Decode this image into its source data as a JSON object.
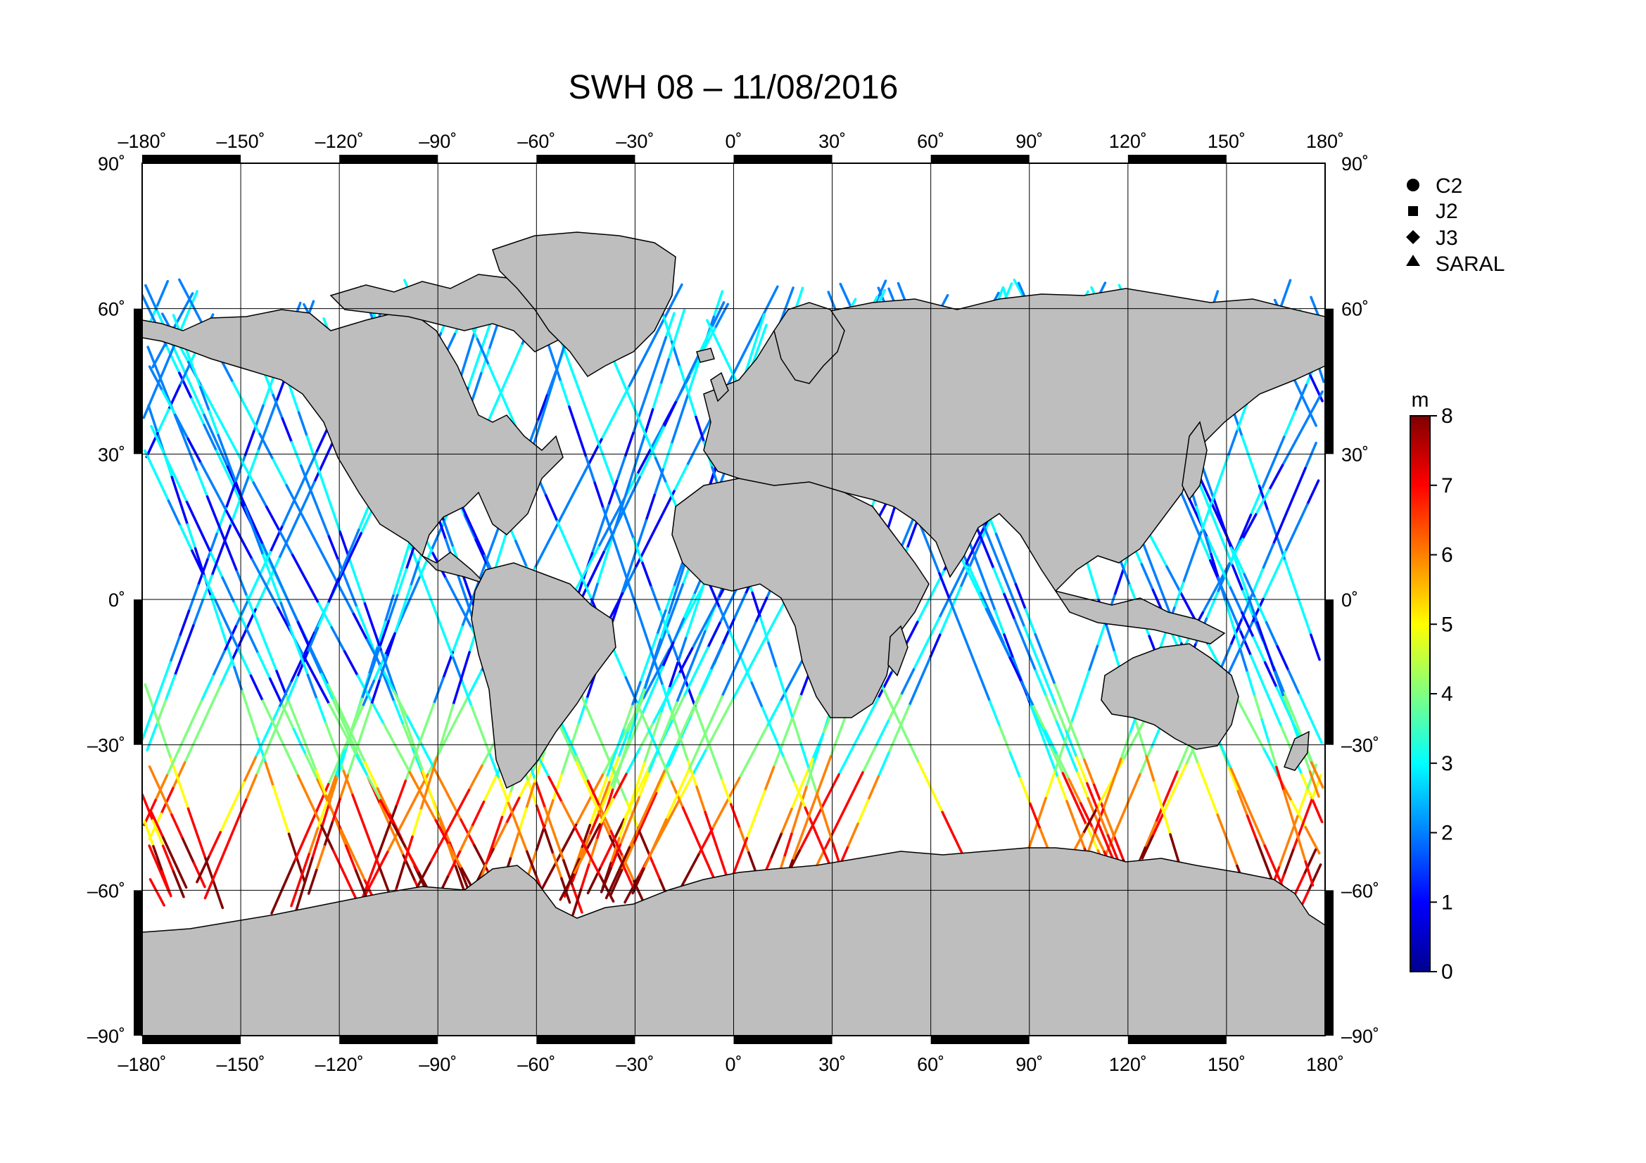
{
  "title": "SWH 08 – 11/08/2016",
  "map": {
    "lon_ticks": [
      -180,
      -150,
      -120,
      -90,
      -60,
      -30,
      0,
      30,
      60,
      90,
      120,
      150,
      180
    ],
    "lon_labels": [
      "–180˚",
      "–150˚",
      "–120˚",
      "–90˚",
      "–60˚",
      "–30˚",
      "0˚",
      "30˚",
      "60˚",
      "90˚",
      "120˚",
      "150˚",
      "180˚"
    ],
    "lat_ticks": [
      90,
      60,
      30,
      0,
      -30,
      -60,
      -90
    ],
    "lat_labels": [
      "90˚",
      "60˚",
      "30˚",
      "0˚",
      "–30˚",
      "–60˚",
      "–90˚"
    ],
    "land_color": "#bebebe"
  },
  "legend": {
    "items": [
      {
        "label": "C2",
        "marker": "circle"
      },
      {
        "label": "J2",
        "marker": "square"
      },
      {
        "label": "J3",
        "marker": "diamond"
      },
      {
        "label": "SARAL",
        "marker": "triangle"
      }
    ]
  },
  "colorbar": {
    "unit": "m",
    "min": 0,
    "max": 8,
    "ticks": [
      "0",
      "1",
      "2",
      "3",
      "4",
      "5",
      "6",
      "7",
      "8"
    ],
    "colormap": [
      "#00008f",
      "#0000ff",
      "#0080ff",
      "#00ffff",
      "#80ff80",
      "#ffff00",
      "#ff8000",
      "#ff0000",
      "#800000"
    ]
  }
}
